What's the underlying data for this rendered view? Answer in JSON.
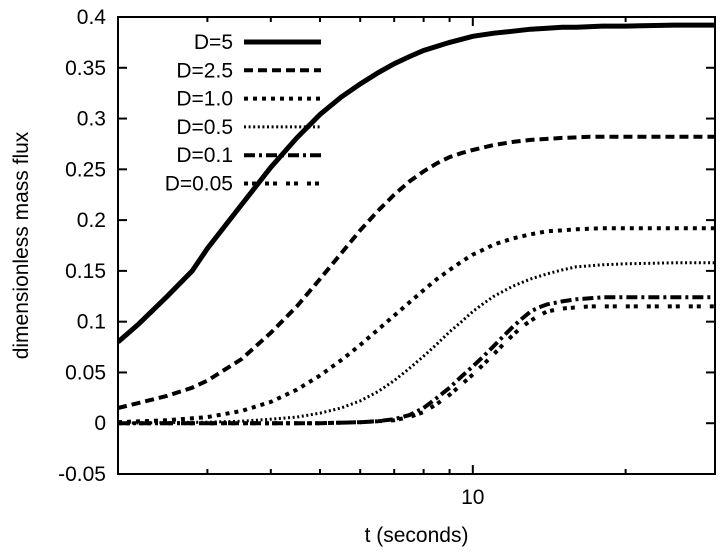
{
  "colors": {
    "foreground": "#000000",
    "background": "#ffffff"
  },
  "chart_data": {
    "type": "line",
    "title": "",
    "xlabel": "t (seconds)",
    "ylabel": "dimensionless mass flux",
    "x_scale": "log",
    "xlim": [
      2,
      30
    ],
    "ylim": [
      -0.05,
      0.4
    ],
    "grid": false,
    "legend_position": "top-left-inside",
    "x_ticks_major": [
      10
    ],
    "x_ticks_minor": [
      3,
      4,
      5,
      6,
      7,
      8,
      9,
      20
    ],
    "x_tick_labels": [
      {
        "value": 10,
        "label": "10"
      }
    ],
    "y_ticks": [
      -0.05,
      0,
      0.05,
      0.1,
      0.15,
      0.2,
      0.25,
      0.3,
      0.35,
      0.4
    ],
    "y_tick_labels": [
      "-0.05",
      "0",
      "0.05",
      "0.1",
      "0.15",
      "0.2",
      "0.25",
      "0.3",
      "0.35",
      "0.4"
    ],
    "series": [
      {
        "name": "D=5",
        "color": "#000000",
        "line_width": 5,
        "dash": [],
        "plateau": 0.392,
        "points": [
          [
            2,
            0.08
          ],
          [
            2.2,
            0.098
          ],
          [
            2.5,
            0.125
          ],
          [
            2.8,
            0.15
          ],
          [
            3,
            0.172
          ],
          [
            3.5,
            0.215
          ],
          [
            4,
            0.252
          ],
          [
            4.5,
            0.281
          ],
          [
            5,
            0.304
          ],
          [
            5.5,
            0.321
          ],
          [
            6,
            0.334
          ],
          [
            6.5,
            0.345
          ],
          [
            7,
            0.354
          ],
          [
            7.5,
            0.361
          ],
          [
            8,
            0.367
          ],
          [
            9,
            0.375
          ],
          [
            10,
            0.381
          ],
          [
            11,
            0.384
          ],
          [
            12,
            0.386
          ],
          [
            13,
            0.388
          ],
          [
            14,
            0.389
          ],
          [
            15,
            0.39
          ],
          [
            16,
            0.39
          ],
          [
            18,
            0.391
          ],
          [
            20,
            0.391
          ],
          [
            25,
            0.392
          ],
          [
            30,
            0.392
          ]
        ]
      },
      {
        "name": "D=2.5",
        "color": "#000000",
        "line_width": 4,
        "dash": [
          9,
          5
        ],
        "plateau": 0.282,
        "points": [
          [
            2,
            0.015
          ],
          [
            2.2,
            0.02
          ],
          [
            2.5,
            0.027
          ],
          [
            2.8,
            0.035
          ],
          [
            3,
            0.042
          ],
          [
            3.5,
            0.063
          ],
          [
            4,
            0.089
          ],
          [
            4.5,
            0.115
          ],
          [
            5,
            0.142
          ],
          [
            5.5,
            0.167
          ],
          [
            6,
            0.19
          ],
          [
            6.5,
            0.209
          ],
          [
            7,
            0.225
          ],
          [
            7.5,
            0.238
          ],
          [
            8,
            0.248
          ],
          [
            8.5,
            0.256
          ],
          [
            9,
            0.262
          ],
          [
            9.5,
            0.266
          ],
          [
            10,
            0.269
          ],
          [
            11,
            0.274
          ],
          [
            12,
            0.277
          ],
          [
            13,
            0.279
          ],
          [
            14,
            0.28
          ],
          [
            15,
            0.281
          ],
          [
            17,
            0.282
          ],
          [
            20,
            0.282
          ],
          [
            25,
            0.282
          ],
          [
            30,
            0.282
          ]
        ]
      },
      {
        "name": "D=1.0",
        "color": "#000000",
        "line_width": 4,
        "dash": [
          4,
          5
        ],
        "plateau": 0.192,
        "points": [
          [
            2,
            0.001
          ],
          [
            2.5,
            0.003
          ],
          [
            3,
            0.006
          ],
          [
            3.5,
            0.012
          ],
          [
            4,
            0.021
          ],
          [
            4.5,
            0.033
          ],
          [
            5,
            0.047
          ],
          [
            5.5,
            0.062
          ],
          [
            6,
            0.077
          ],
          [
            6.5,
            0.092
          ],
          [
            7,
            0.106
          ],
          [
            7.5,
            0.119
          ],
          [
            8,
            0.131
          ],
          [
            8.5,
            0.142
          ],
          [
            9,
            0.151
          ],
          [
            9.5,
            0.159
          ],
          [
            10,
            0.166
          ],
          [
            10.5,
            0.171
          ],
          [
            11,
            0.176
          ],
          [
            12,
            0.182
          ],
          [
            13,
            0.186
          ],
          [
            14,
            0.189
          ],
          [
            15,
            0.19
          ],
          [
            16,
            0.191
          ],
          [
            18,
            0.192
          ],
          [
            20,
            0.192
          ],
          [
            25,
            0.192
          ],
          [
            30,
            0.192
          ]
        ]
      },
      {
        "name": "D=0.5",
        "color": "#000000",
        "line_width": 3,
        "dash": [
          2,
          2.6
        ],
        "plateau": 0.158,
        "points": [
          [
            2,
            0.0
          ],
          [
            3,
            0.001
          ],
          [
            3.5,
            0.002
          ],
          [
            4,
            0.004
          ],
          [
            4.5,
            0.006
          ],
          [
            5,
            0.01
          ],
          [
            5.5,
            0.015
          ],
          [
            6,
            0.022
          ],
          [
            6.5,
            0.031
          ],
          [
            7,
            0.042
          ],
          [
            7.5,
            0.054
          ],
          [
            8,
            0.066
          ],
          [
            8.5,
            0.078
          ],
          [
            9,
            0.09
          ],
          [
            9.5,
            0.1
          ],
          [
            10,
            0.11
          ],
          [
            10.5,
            0.118
          ],
          [
            11,
            0.125
          ],
          [
            12,
            0.135
          ],
          [
            13,
            0.142
          ],
          [
            14,
            0.147
          ],
          [
            15,
            0.151
          ],
          [
            16,
            0.154
          ],
          [
            18,
            0.156
          ],
          [
            20,
            0.157
          ],
          [
            25,
            0.158
          ],
          [
            30,
            0.158
          ]
        ]
      },
      {
        "name": "D=0.1",
        "color": "#000000",
        "line_width": 4,
        "dash": [
          11,
          4,
          3,
          4
        ],
        "plateau": 0.124,
        "points": [
          [
            2,
            0.0
          ],
          [
            3,
            0.0
          ],
          [
            4,
            0.0
          ],
          [
            5,
            0.0
          ],
          [
            6,
            0.001
          ],
          [
            6.5,
            0.002
          ],
          [
            7,
            0.004
          ],
          [
            7.5,
            0.008
          ],
          [
            8,
            0.015
          ],
          [
            8.5,
            0.025
          ],
          [
            9,
            0.035
          ],
          [
            9.5,
            0.046
          ],
          [
            10,
            0.056
          ],
          [
            10.5,
            0.066
          ],
          [
            11,
            0.076
          ],
          [
            11.5,
            0.086
          ],
          [
            12,
            0.095
          ],
          [
            12.5,
            0.103
          ],
          [
            13,
            0.11
          ],
          [
            13.5,
            0.114
          ],
          [
            14,
            0.117
          ],
          [
            15,
            0.12
          ],
          [
            16,
            0.122
          ],
          [
            17,
            0.123
          ],
          [
            18,
            0.124
          ],
          [
            20,
            0.124
          ],
          [
            25,
            0.124
          ],
          [
            30,
            0.124
          ]
        ]
      },
      {
        "name": "D=0.05",
        "color": "#000000",
        "line_width": 4,
        "dash": [
          4,
          4,
          4,
          9
        ],
        "plateau": 0.115,
        "points": [
          [
            2,
            0.0
          ],
          [
            3,
            0.0
          ],
          [
            4,
            0.0
          ],
          [
            5,
            0.0
          ],
          [
            6,
            0.001
          ],
          [
            6.5,
            0.002
          ],
          [
            7,
            0.003
          ],
          [
            7.5,
            0.006
          ],
          [
            8,
            0.011
          ],
          [
            8.5,
            0.019
          ],
          [
            9,
            0.028
          ],
          [
            9.5,
            0.038
          ],
          [
            10,
            0.048
          ],
          [
            10.5,
            0.058
          ],
          [
            11,
            0.068
          ],
          [
            11.5,
            0.078
          ],
          [
            12,
            0.087
          ],
          [
            12.5,
            0.095
          ],
          [
            13,
            0.101
          ],
          [
            13.5,
            0.106
          ],
          [
            14,
            0.11
          ],
          [
            15,
            0.113
          ],
          [
            16,
            0.114
          ],
          [
            17,
            0.115
          ],
          [
            18,
            0.115
          ],
          [
            20,
            0.115
          ],
          [
            25,
            0.115
          ],
          [
            30,
            0.115
          ]
        ]
      }
    ]
  }
}
